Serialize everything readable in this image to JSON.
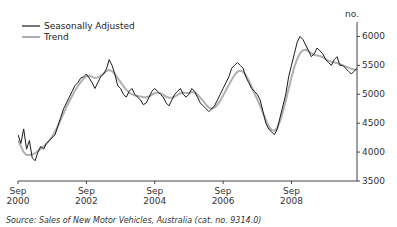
{
  "chart_data": {
    "type": "line",
    "y_label": "no.",
    "source": "Source: Sales of New Motor Vehicles, Australia (cat. no. 9314.0)",
    "categories": [
      "Sep\n2000",
      null,
      null,
      null,
      null,
      null,
      null,
      null,
      null,
      null,
      null,
      null,
      null,
      null,
      null,
      null,
      null,
      null,
      null,
      null,
      null,
      null,
      null,
      null,
      "Sep\n2002",
      null,
      null,
      null,
      null,
      null,
      null,
      null,
      null,
      null,
      null,
      null,
      null,
      null,
      null,
      null,
      null,
      null,
      null,
      null,
      null,
      null,
      null,
      null,
      "Sep\n2004",
      null,
      null,
      null,
      null,
      null,
      null,
      null,
      null,
      null,
      null,
      null,
      null,
      null,
      null,
      null,
      null,
      null,
      null,
      null,
      null,
      null,
      null,
      null,
      "Sep\n2006",
      null,
      null,
      null,
      null,
      null,
      null,
      null,
      null,
      null,
      null,
      null,
      null,
      null,
      null,
      null,
      null,
      null,
      null,
      null,
      null,
      null,
      null,
      null,
      "Sep\n2008",
      null,
      null,
      null,
      null,
      null,
      null,
      null,
      null,
      null,
      null,
      null,
      null,
      null,
      null,
      null,
      null,
      null,
      null,
      null,
      null,
      null,
      null,
      null
    ],
    "ylim": [
      3500,
      6250
    ],
    "yticks": [
      3500,
      4000,
      4500,
      5000,
      5500,
      6000
    ],
    "grid": false,
    "legend": "upper left",
    "series": [
      {
        "name": "Seasonally Adjusted",
        "color": "#1a1a1a",
        "values": [
          4300,
          4150,
          4400,
          4050,
          4200,
          3900,
          3850,
          4000,
          4100,
          4050,
          4150,
          4200,
          4250,
          4300,
          4450,
          4600,
          4750,
          4850,
          4950,
          5050,
          5150,
          5200,
          5280,
          5300,
          5350,
          5280,
          5200,
          5100,
          5200,
          5300,
          5350,
          5430,
          5600,
          5500,
          5350,
          5150,
          5100,
          5000,
          4950,
          5050,
          5100,
          5000,
          4950,
          4900,
          4820,
          4850,
          4950,
          5050,
          5100,
          5050,
          5000,
          4950,
          4850,
          4800,
          4900,
          5000,
          5050,
          5100,
          5000,
          4950,
          5000,
          5100,
          5050,
          4950,
          4850,
          4800,
          4750,
          4700,
          4750,
          4800,
          4900,
          5000,
          5100,
          5200,
          5300,
          5450,
          5500,
          5550,
          5500,
          5450,
          5300,
          5200,
          5100,
          5050,
          5000,
          4900,
          4700,
          4500,
          4400,
          4350,
          4300,
          4400,
          4600,
          4800,
          5000,
          5300,
          5500,
          5700,
          5900,
          6000,
          5950,
          5850,
          5750,
          5650,
          5700,
          5800,
          5750,
          5700,
          5600,
          5550,
          5500,
          5600,
          5650,
          5500,
          5500,
          5450,
          5400,
          5350,
          5400,
          5450
        ]
      },
      {
        "name": "Trend",
        "color": "#b0b0b0",
        "values": [
          4200,
          4100,
          4000,
          3950,
          3950,
          3960,
          3980,
          4020,
          4060,
          4100,
          4150,
          4200,
          4270,
          4350,
          4450,
          4560,
          4670,
          4780,
          4880,
          4970,
          5060,
          5140,
          5210,
          5270,
          5310,
          5320,
          5300,
          5280,
          5290,
          5320,
          5360,
          5400,
          5420,
          5400,
          5350,
          5280,
          5210,
          5140,
          5080,
          5030,
          5000,
          4980,
          4970,
          4960,
          4950,
          4950,
          4960,
          4990,
          5020,
          5030,
          5020,
          4990,
          4960,
          4940,
          4940,
          4960,
          4990,
          5020,
          5030,
          5020,
          5020,
          5040,
          5030,
          4990,
          4940,
          4880,
          4820,
          4770,
          4750,
          4770,
          4820,
          4890,
          4980,
          5070,
          5160,
          5250,
          5330,
          5390,
          5410,
          5390,
          5330,
          5240,
          5130,
          5020,
          4910,
          4800,
          4680,
          4560,
          4450,
          4380,
          4370,
          4420,
          4540,
          4700,
          4890,
          5090,
          5290,
          5470,
          5610,
          5710,
          5760,
          5770,
          5750,
          5710,
          5680,
          5670,
          5660,
          5640,
          5610,
          5580,
          5560,
          5550,
          5540,
          5520,
          5500,
          5480,
          5460,
          5440,
          5430,
          5420
        ]
      }
    ]
  }
}
